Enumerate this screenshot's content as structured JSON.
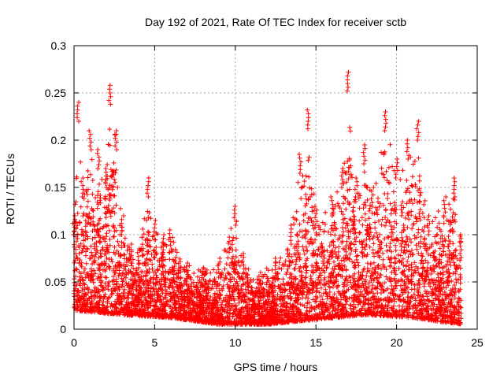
{
  "chart_data": {
    "type": "scatter",
    "title": "Day 192 of 2021, Rate Of TEC Index for receiver sctb",
    "xlabel": "GPS time / hours",
    "ylabel": "ROTI / TECUs",
    "xlim": [
      0,
      25
    ],
    "ylim": [
      0,
      0.3
    ],
    "xticks": [
      "0",
      "5",
      "10",
      "15",
      "20",
      "25"
    ],
    "yticks": [
      "0",
      "0.05",
      "0.1",
      "0.15",
      "0.2",
      "0.25",
      "0.3"
    ],
    "grid": true,
    "marker": "+",
    "color": "#ff0000",
    "x_range_of_data": [
      0,
      24
    ],
    "envelope": [
      {
        "x": 0.0,
        "y": 0.12
      },
      {
        "x": 0.25,
        "y": 0.24
      },
      {
        "x": 0.5,
        "y": 0.16
      },
      {
        "x": 1.0,
        "y": 0.21
      },
      {
        "x": 1.5,
        "y": 0.19
      },
      {
        "x": 2.0,
        "y": 0.17
      },
      {
        "x": 2.2,
        "y": 0.258
      },
      {
        "x": 2.6,
        "y": 0.21
      },
      {
        "x": 3.0,
        "y": 0.12
      },
      {
        "x": 3.5,
        "y": 0.09
      },
      {
        "x": 4.0,
        "y": 0.085
      },
      {
        "x": 4.6,
        "y": 0.16
      },
      {
        "x": 5.0,
        "y": 0.115
      },
      {
        "x": 5.5,
        "y": 0.1
      },
      {
        "x": 6.0,
        "y": 0.105
      },
      {
        "x": 7.0,
        "y": 0.07
      },
      {
        "x": 8.0,
        "y": 0.065
      },
      {
        "x": 9.0,
        "y": 0.075
      },
      {
        "x": 10.0,
        "y": 0.13
      },
      {
        "x": 10.5,
        "y": 0.08
      },
      {
        "x": 11.5,
        "y": 0.06
      },
      {
        "x": 12.5,
        "y": 0.075
      },
      {
        "x": 13.5,
        "y": 0.11
      },
      {
        "x": 14.0,
        "y": 0.185
      },
      {
        "x": 14.5,
        "y": 0.232
      },
      {
        "x": 15.0,
        "y": 0.13
      },
      {
        "x": 16.0,
        "y": 0.14
      },
      {
        "x": 16.6,
        "y": 0.17
      },
      {
        "x": 17.0,
        "y": 0.272
      },
      {
        "x": 17.5,
        "y": 0.16
      },
      {
        "x": 18.0,
        "y": 0.195
      },
      {
        "x": 18.5,
        "y": 0.15
      },
      {
        "x": 19.3,
        "y": 0.23
      },
      {
        "x": 20.0,
        "y": 0.18
      },
      {
        "x": 20.7,
        "y": 0.2
      },
      {
        "x": 21.3,
        "y": 0.22
      },
      {
        "x": 22.0,
        "y": 0.12
      },
      {
        "x": 23.0,
        "y": 0.14
      },
      {
        "x": 23.6,
        "y": 0.16
      },
      {
        "x": 24.0,
        "y": 0.1
      }
    ],
    "baseline": [
      {
        "x": 0.0,
        "y": 0.02
      },
      {
        "x": 3.0,
        "y": 0.015
      },
      {
        "x": 6.0,
        "y": 0.012
      },
      {
        "x": 9.0,
        "y": 0.005
      },
      {
        "x": 12.0,
        "y": 0.005
      },
      {
        "x": 15.0,
        "y": 0.01
      },
      {
        "x": 18.0,
        "y": 0.015
      },
      {
        "x": 21.0,
        "y": 0.012
      },
      {
        "x": 24.0,
        "y": 0.005
      }
    ],
    "point_count": 5200
  }
}
